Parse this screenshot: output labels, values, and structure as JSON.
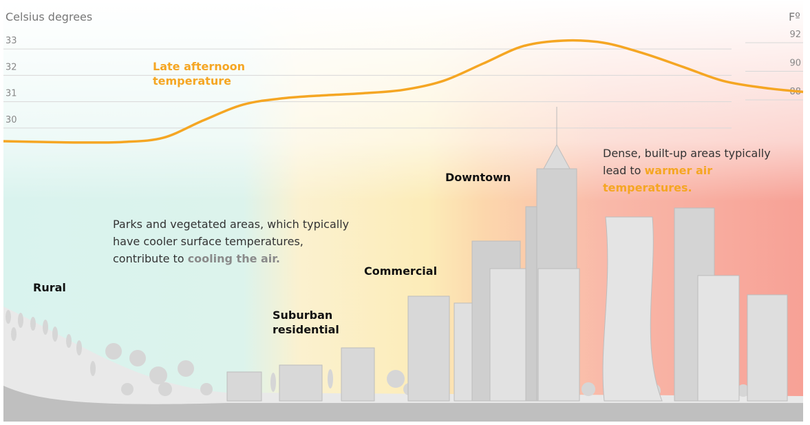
{
  "chart_data": {
    "type": "line",
    "ylabel": "Celsius degrees",
    "y2label": "Fº",
    "categories": [
      null,
      null,
      null,
      null,
      null,
      null,
      null,
      null,
      null,
      null,
      null,
      null,
      null,
      null,
      null,
      null,
      null,
      null,
      null,
      null,
      null
    ],
    "series": [
      {
        "name": "Late afternoon temperature",
        "color": "#f5a623",
        "values": [
          29.5,
          29.47,
          29.45,
          29.47,
          29.63,
          30.29,
          30.89,
          31.13,
          31.24,
          31.32,
          31.45,
          31.79,
          32.45,
          33.11,
          33.32,
          33.24,
          32.84,
          32.32,
          31.79,
          31.53,
          31.37
        ]
      }
    ],
    "ylim": [
      29.3,
      33.8
    ],
    "yticks": [
      30,
      31,
      32,
      33
    ],
    "y2lim": [
      84.74,
      93.03
    ],
    "y2ticks": [
      88,
      90,
      92
    ],
    "grid": true,
    "annotations": {
      "rural": "Rural",
      "suburban": "Suburban residential",
      "commercial": "Commercial",
      "downtown": "Downtown",
      "parks": [
        "Parks and vegetated areas, which typically",
        "have cooler surface temperatures,",
        "contribute to",
        "cooling the air."
      ],
      "dense": [
        "Dense, built-up areas typically",
        "lead to",
        "warmer air",
        "temperatures."
      ]
    }
  }
}
